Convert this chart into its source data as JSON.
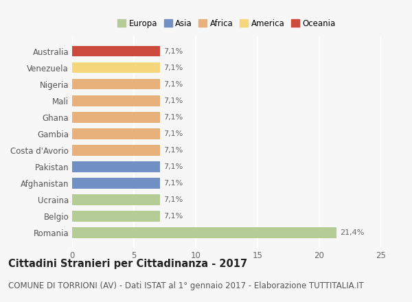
{
  "categories": [
    "Australia",
    "Venezuela",
    "Nigeria",
    "Mali",
    "Ghana",
    "Gambia",
    "Costa d'Avorio",
    "Pakistan",
    "Afghanistan",
    "Ucraina",
    "Belgio",
    "Romania"
  ],
  "values": [
    7.1,
    7.1,
    7.1,
    7.1,
    7.1,
    7.1,
    7.1,
    7.1,
    7.1,
    7.1,
    7.1,
    21.4
  ],
  "labels": [
    "7,1%",
    "7,1%",
    "7,1%",
    "7,1%",
    "7,1%",
    "7,1%",
    "7,1%",
    "7,1%",
    "7,1%",
    "7,1%",
    "7,1%",
    "21,4%"
  ],
  "bar_colors": [
    "#cc4a3c",
    "#f5d67a",
    "#e8b07a",
    "#e8b07a",
    "#e8b07a",
    "#e8b07a",
    "#e8b07a",
    "#7191c4",
    "#7191c4",
    "#b5cc96",
    "#b5cc96",
    "#b5cc96"
  ],
  "legend_labels": [
    "Europa",
    "Asia",
    "Africa",
    "America",
    "Oceania"
  ],
  "legend_colors": [
    "#b5cc96",
    "#7191c4",
    "#e8b07a",
    "#f5d67a",
    "#cc4a3c"
  ],
  "title": "Cittadini Stranieri per Cittadinanza - 2017",
  "subtitle": "COMUNE DI TORRIONI (AV) - Dati ISTAT al 1° gennaio 2017 - Elaborazione TUTTITALIA.IT",
  "xlim": [
    0,
    25
  ],
  "xticks": [
    0,
    5,
    10,
    15,
    20,
    25
  ],
  "background_color": "#f7f7f7",
  "title_fontsize": 10.5,
  "subtitle_fontsize": 8.5
}
